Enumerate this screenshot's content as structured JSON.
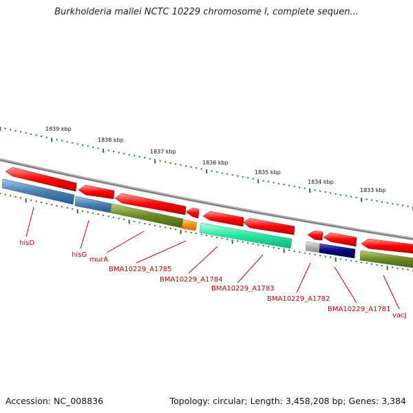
{
  "title": "Burkholderia mallei NCTC 10229 chromosome I, complete sequen...",
  "footer": {
    "accession": "Accession: NC_008836",
    "summary": "Topology: circular; Length: 3,458,208 bp; Genes: 3,384"
  },
  "scale_labels": [
    "1839 kbp",
    "1838 kbp",
    "1837 kbp",
    "1836 kbp",
    "1835 kbp",
    "1834 kbp",
    "1833 kbp"
  ],
  "gene_labels": [
    "hisD",
    "hisG",
    "murA",
    "BMA10229_A1785",
    "BMA10229_A1784",
    "BMA10229_A1783",
    "BMA10229_A1782",
    "BMA10229_A1781",
    "vacJ"
  ],
  "colors": {
    "backbone": "#808080",
    "tick": "#1e7a1e",
    "arrow": "#ff0000",
    "label": "#cc0000",
    "steelblue": "#4a7fb5",
    "olive": "#6b8a22",
    "orange": "#ff8c00",
    "aquamarine": "#22e6a0",
    "silver": "#b0b0b0",
    "navy": "#000080"
  }
}
